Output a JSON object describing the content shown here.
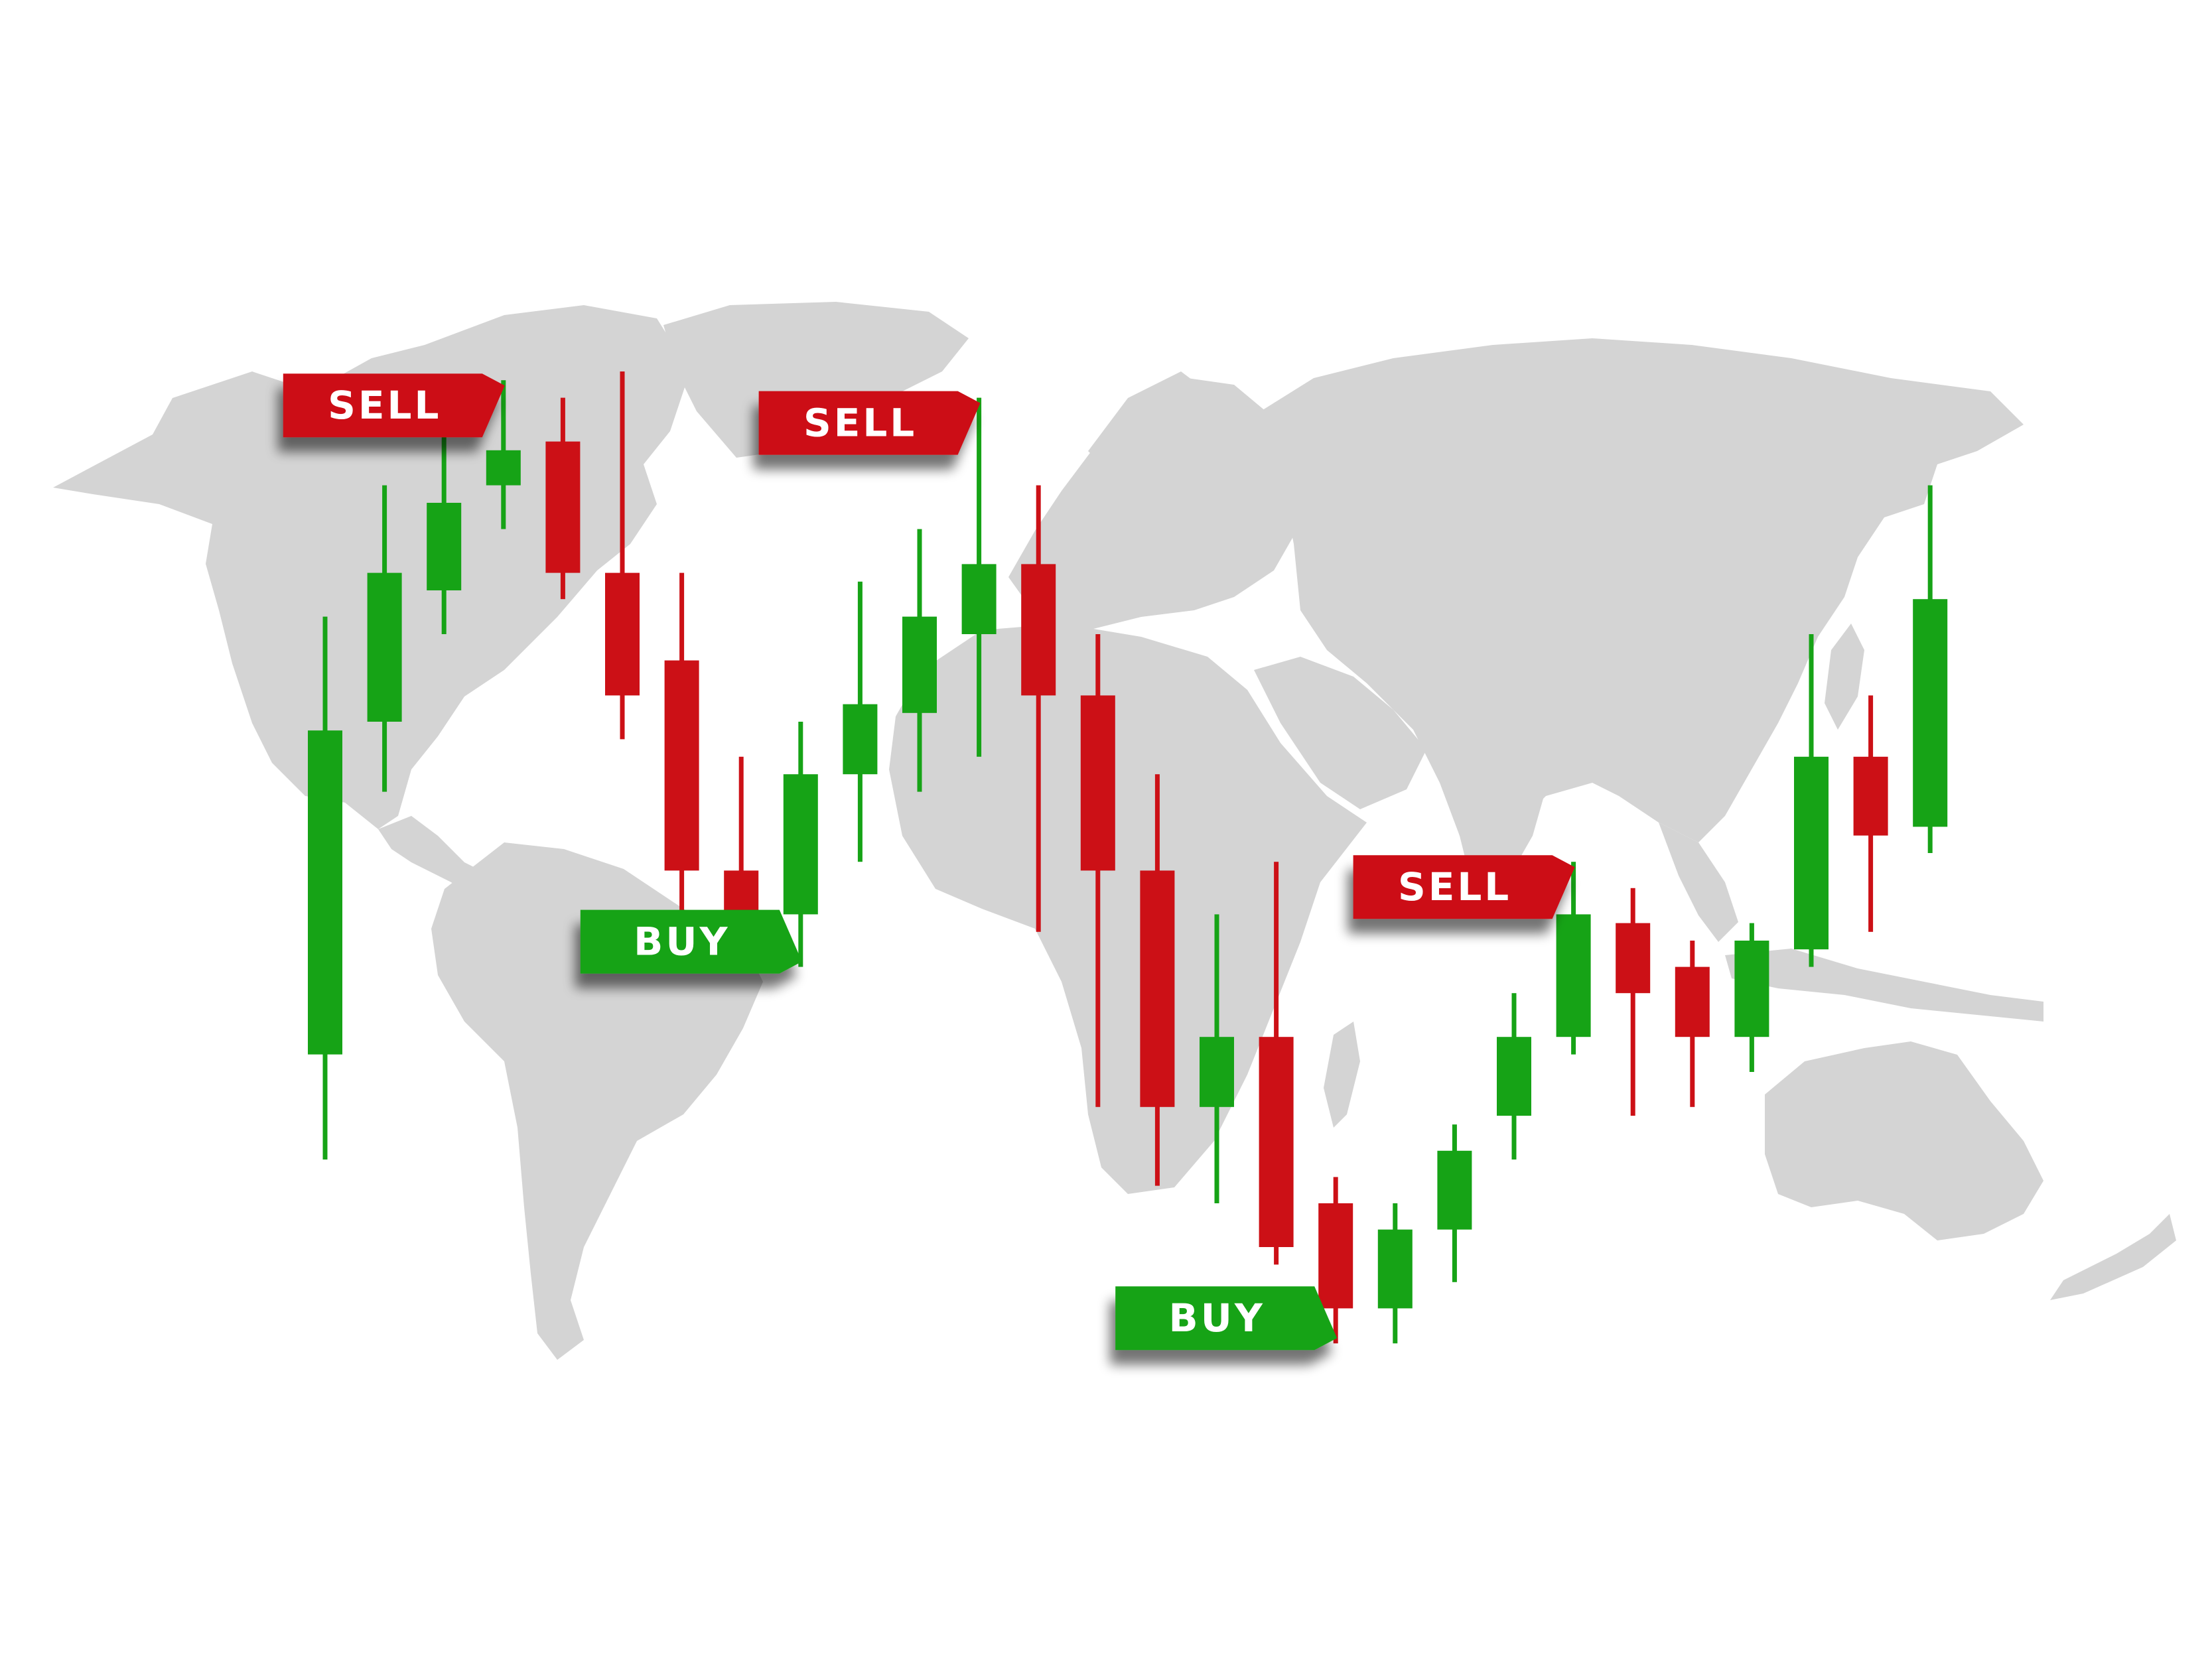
{
  "chart_data": {
    "type": "candlestick",
    "title": "",
    "xlabel": "",
    "ylabel": "",
    "background": "world-map-silhouette",
    "ylim": [
      0,
      100
    ],
    "colors": {
      "bullish": "#16a316",
      "bearish": "#cc1016",
      "map": "#d4d4d4"
    },
    "candles": [
      {
        "dir": "up",
        "open": 22,
        "close": 59,
        "high": 72,
        "low": 10
      },
      {
        "dir": "up",
        "open": 60,
        "close": 77,
        "high": 87,
        "low": 52
      },
      {
        "dir": "up",
        "open": 75,
        "close": 85,
        "high": 96,
        "low": 70
      },
      {
        "dir": "up",
        "open": 87,
        "close": 91,
        "high": 99,
        "low": 82
      },
      {
        "dir": "down",
        "open": 92,
        "close": 77,
        "high": 97,
        "low": 74
      },
      {
        "dir": "down",
        "open": 77,
        "close": 63,
        "high": 100,
        "low": 58
      },
      {
        "dir": "down",
        "open": 67,
        "close": 43,
        "high": 77,
        "low": 33
      },
      {
        "dir": "down",
        "open": 43,
        "close": 36,
        "high": 56,
        "low": 34
      },
      {
        "dir": "up",
        "open": 38,
        "close": 54,
        "high": 60,
        "low": 32
      },
      {
        "dir": "up",
        "open": 54,
        "close": 62,
        "high": 76,
        "low": 44
      },
      {
        "dir": "up",
        "open": 61,
        "close": 72,
        "high": 82,
        "low": 52
      },
      {
        "dir": "up",
        "open": 70,
        "close": 78,
        "high": 97,
        "low": 56
      },
      {
        "dir": "down",
        "open": 78,
        "close": 63,
        "high": 87,
        "low": 36
      },
      {
        "dir": "down",
        "open": 63,
        "close": 43,
        "high": 70,
        "low": 16
      },
      {
        "dir": "down",
        "open": 43,
        "close": 16,
        "high": 54,
        "low": 7
      },
      {
        "dir": "up",
        "open": 16,
        "close": 24,
        "high": 38,
        "low": 5
      },
      {
        "dir": "down",
        "open": 24,
        "close": 0,
        "high": 44,
        "low": -2
      },
      {
        "dir": "down",
        "open": 5,
        "close": -7,
        "high": 8,
        "low": -11
      },
      {
        "dir": "up",
        "open": -7,
        "close": 2,
        "high": 5,
        "low": -11
      },
      {
        "dir": "up",
        "open": 2,
        "close": 11,
        "high": 14,
        "low": -4
      },
      {
        "dir": "up",
        "open": 15,
        "close": 24,
        "high": 29,
        "low": 10
      },
      {
        "dir": "up",
        "open": 24,
        "close": 38,
        "high": 44,
        "low": 22
      },
      {
        "dir": "down",
        "open": 37,
        "close": 29,
        "high": 41,
        "low": 15
      },
      {
        "dir": "down",
        "open": 32,
        "close": 24,
        "high": 35,
        "low": 16
      },
      {
        "dir": "up",
        "open": 24,
        "close": 35,
        "high": 37,
        "low": 20
      },
      {
        "dir": "up",
        "open": 34,
        "close": 56,
        "high": 70,
        "low": 32
      },
      {
        "dir": "down",
        "open": 56,
        "close": 47,
        "high": 63,
        "low": 36
      },
      {
        "dir": "up",
        "open": 48,
        "close": 74,
        "high": 87,
        "low": 45
      }
    ],
    "signals": [
      {
        "label": "SELL",
        "type": "sell",
        "candle": 3
      },
      {
        "label": "SELL",
        "type": "sell",
        "candle": 11
      },
      {
        "label": "SELL",
        "type": "sell",
        "candle": 21
      },
      {
        "label": "BUY",
        "type": "buy",
        "candle": 8
      },
      {
        "label": "BUY",
        "type": "buy",
        "candle": 17
      }
    ]
  }
}
